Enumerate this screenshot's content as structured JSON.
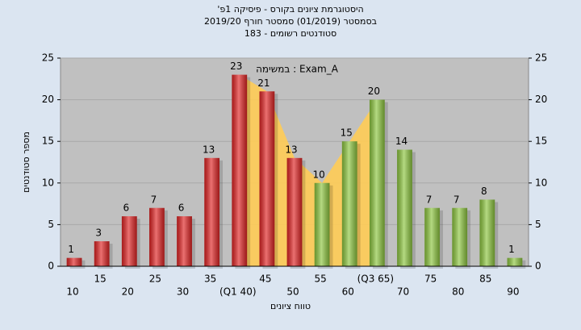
{
  "chart_data": {
    "type": "bar",
    "title": "היסטוגרמת ציונים בקורס - פיסיקה 1פ'",
    "subtitle": "בסמסטר (01/2019) סמסטר חורף 2019/20",
    "subtitle2": "סטודנטים רשומים - 183",
    "annotation": "Exam_A : במשימה",
    "x_label": "טווח ציונים",
    "y_label": "מספר סטודנטים",
    "categories": [
      "10",
      "15",
      "20",
      "25",
      "30",
      "35",
      "(Q1 40)",
      "45",
      "50",
      "55",
      "60",
      "(Q3 65)",
      "70",
      "75",
      "80",
      "85",
      "90"
    ],
    "values": [
      1,
      3,
      6,
      7,
      6,
      13,
      23,
      21,
      13,
      10,
      15,
      20,
      14,
      7,
      7,
      8,
      1
    ],
    "colors": [
      "#e02424",
      "#e02424",
      "#e02424",
      "#e02424",
      "#e02424",
      "#e02424",
      "#e02424",
      "#e02424",
      "#e02424",
      "#8dc63f",
      "#8dc63f",
      "#8dc63f",
      "#8dc63f",
      "#8dc63f",
      "#8dc63f",
      "#8dc63f",
      "#8dc63f"
    ],
    "area_color": "#ffcc55",
    "ylim": [
      0,
      25
    ],
    "yticks": [
      0,
      5,
      10,
      15,
      20,
      25
    ],
    "y2lim": [
      0,
      25
    ],
    "y2ticks": [
      0,
      5,
      10,
      15,
      20,
      25
    ],
    "grid": true
  }
}
